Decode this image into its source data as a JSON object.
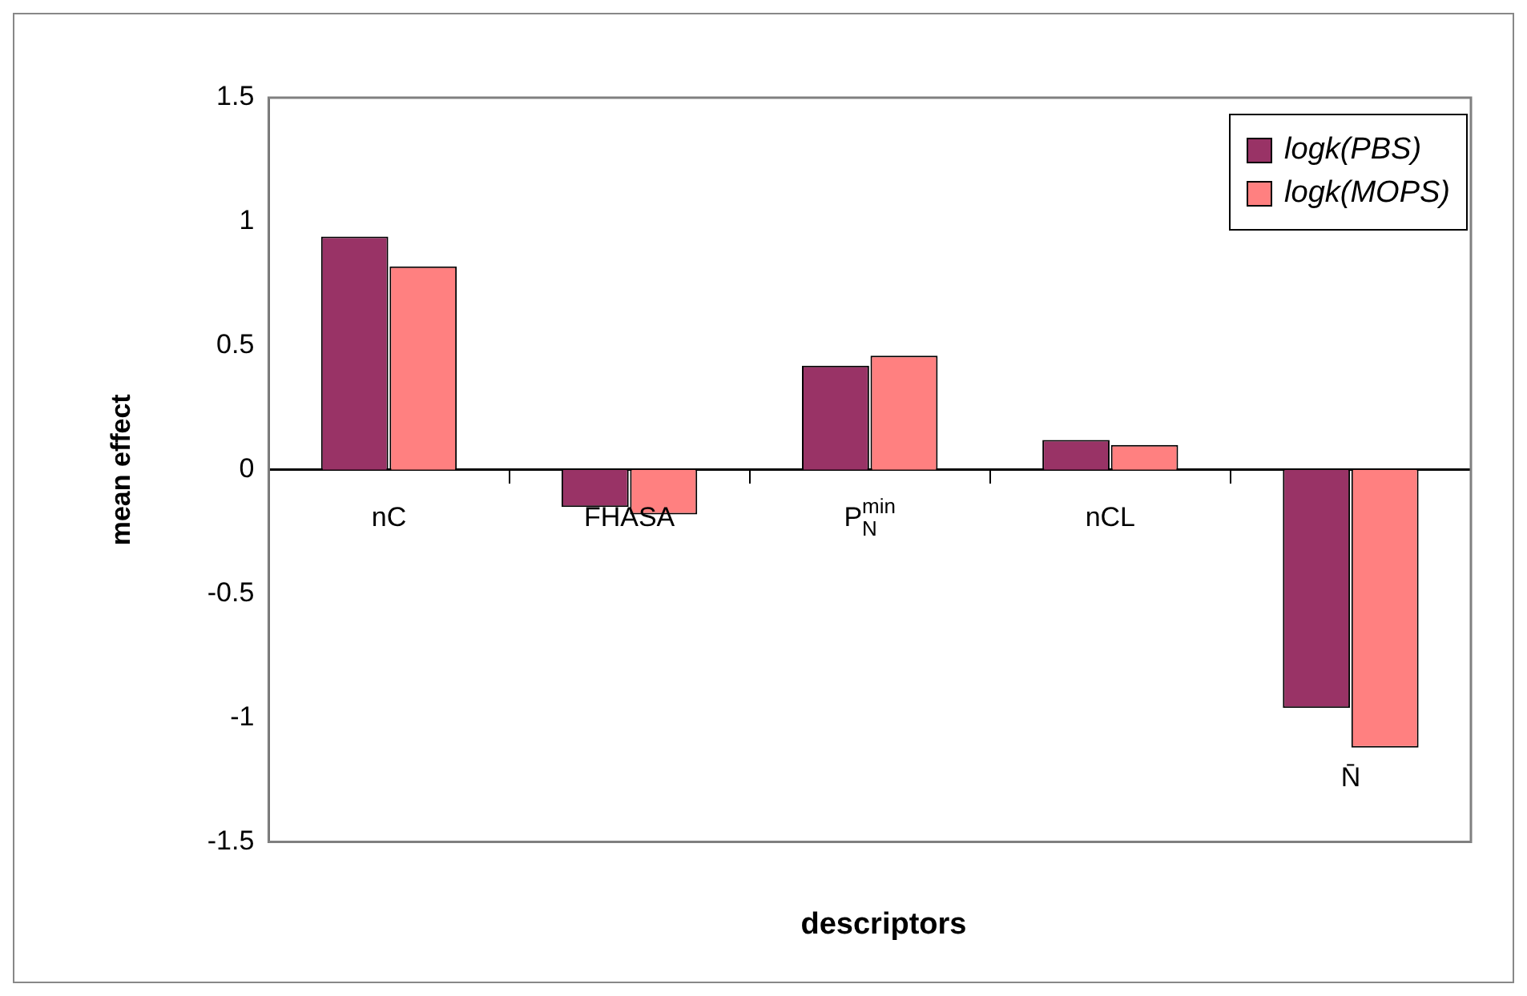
{
  "chart_data": {
    "type": "bar",
    "xlabel": "descriptors",
    "ylabel": "mean effect",
    "categories": [
      "nC",
      "FHASA",
      "P$_{N}$$^{min}$",
      "nCL",
      "N̄"
    ],
    "series": [
      {
        "name": "logk(PBS)",
        "color": "#993366",
        "values": [
          0.94,
          -0.15,
          0.42,
          0.12,
          -0.96
        ]
      },
      {
        "name": "logk(MOPS)",
        "color": "#ff8080",
        "values": [
          0.82,
          -0.18,
          0.46,
          0.1,
          -1.12
        ]
      }
    ],
    "ylim": [
      -1.5,
      1.5
    ],
    "yticks": [
      -1.5,
      -1,
      -0.5,
      0,
      0.5,
      1,
      1.5
    ],
    "grid": false,
    "legend": "top right"
  }
}
